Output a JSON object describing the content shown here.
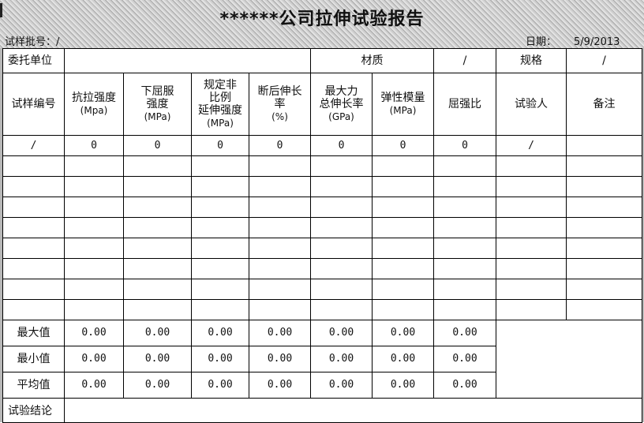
{
  "title": "******公司拉伸试验报告",
  "batch_label": "试样批号：/",
  "date_label": "日期：",
  "date_value": "5/9/2013",
  "row1": {
    "client_label": "委托单位",
    "client_value": "",
    "material_label": "材质",
    "material_value": "/",
    "spec_label": "规格",
    "spec_value": "/"
  },
  "headers": [
    {
      "l1": "试样编号",
      "l2": ""
    },
    {
      "l1": "抗拉强度",
      "l2": "(Mpa)"
    },
    {
      "l1": "下屈服\n强度",
      "l2": "(MPa)"
    },
    {
      "l1": "规定非\n比例\n延伸强度",
      "l2": "(MPa)"
    },
    {
      "l1": "断后伸长\n率",
      "l2": "(%)"
    },
    {
      "l1": "最大力\n总伸长率",
      "l2": "(GPa)"
    },
    {
      "l1": "弹性模量",
      "l2": "(MPa)"
    },
    {
      "l1": "屈强比",
      "l2": ""
    },
    {
      "l1": "试验人",
      "l2": ""
    },
    {
      "l1": "备注",
      "l2": ""
    }
  ],
  "data_row": [
    "/",
    "0",
    "0",
    "0",
    "0",
    "0",
    "0",
    "0",
    "/",
    ""
  ],
  "stats": [
    {
      "label": "最大值",
      "values": [
        "0.00",
        "0.00",
        "0.00",
        "0.00",
        "0.00",
        "0.00",
        "0.00"
      ]
    },
    {
      "label": "最小值",
      "values": [
        "0.00",
        "0.00",
        "0.00",
        "0.00",
        "0.00",
        "0.00",
        "0.00"
      ]
    },
    {
      "label": "平均值",
      "values": [
        "0.00",
        "0.00",
        "0.00",
        "0.00",
        "0.00",
        "0.00",
        "0.00"
      ]
    }
  ],
  "conclusion_label": "试验结论",
  "conclusion_value": ""
}
